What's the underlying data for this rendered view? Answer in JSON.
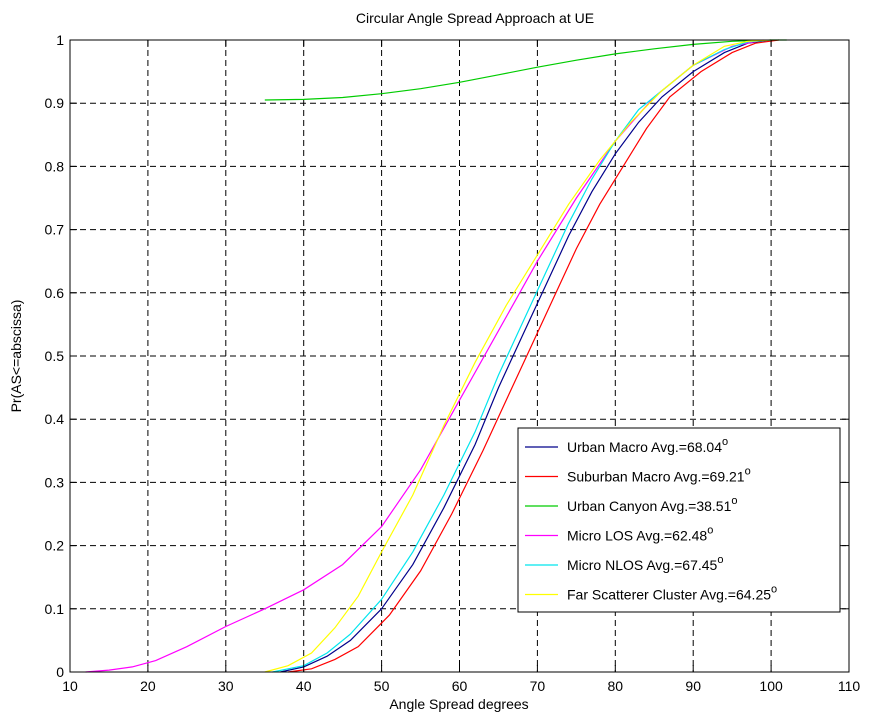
{
  "chart_data": {
    "type": "line",
    "title": "Circular Angle Spread Approach at UE",
    "xlabel": "Angle Spread degrees",
    "ylabel": "Pr(AS<=abscissa)",
    "xlim": [
      10,
      110
    ],
    "ylim": [
      0,
      1
    ],
    "xticks": [
      "10",
      "20",
      "30",
      "40",
      "50",
      "60",
      "70",
      "80",
      "90",
      "100",
      "110"
    ],
    "yticks": [
      "0",
      "0.1",
      "0.2",
      "0.3",
      "0.4",
      "0.5",
      "0.6",
      "0.7",
      "0.8",
      "0.9",
      "1"
    ],
    "grid": true,
    "legend_position": "bottom-right",
    "series": [
      {
        "name": "Urban Macro Avg.=68.04",
        "superscript": "o",
        "color": "#00008b",
        "x": [
          37,
          40,
          43,
          46,
          50,
          54,
          58,
          62,
          65,
          68,
          71,
          74,
          77,
          80,
          83,
          86,
          90,
          94,
          97,
          100
        ],
        "y": [
          0,
          0.008,
          0.025,
          0.05,
          0.1,
          0.17,
          0.26,
          0.36,
          0.45,
          0.53,
          0.61,
          0.69,
          0.76,
          0.82,
          0.87,
          0.91,
          0.95,
          0.98,
          0.995,
          1.0
        ]
      },
      {
        "name": "Suburban Macro Avg.=69.21",
        "superscript": "o",
        "color": "#ff0000",
        "x": [
          38,
          41,
          44,
          47,
          51,
          55,
          59,
          63,
          66,
          69,
          72,
          75,
          78,
          81,
          84,
          87,
          91,
          95,
          98,
          101
        ],
        "y": [
          0,
          0.005,
          0.02,
          0.04,
          0.09,
          0.16,
          0.25,
          0.35,
          0.43,
          0.51,
          0.59,
          0.67,
          0.74,
          0.8,
          0.86,
          0.91,
          0.95,
          0.98,
          0.995,
          1.0
        ]
      },
      {
        "name": "Urban Canyon Avg.=38.51",
        "superscript": "o",
        "color": "#00cc00",
        "x": [
          35,
          40,
          45,
          50,
          55,
          60,
          65,
          70,
          75,
          80,
          85,
          90,
          95,
          100,
          102
        ],
        "y": [
          0.905,
          0.906,
          0.909,
          0.915,
          0.923,
          0.933,
          0.945,
          0.957,
          0.968,
          0.978,
          0.986,
          0.993,
          0.998,
          1.0,
          1.0
        ]
      },
      {
        "name": "Micro LOS Avg.=62.48",
        "superscript": "o",
        "color": "#ff00ff",
        "x": [
          12,
          15,
          18,
          21,
          25,
          30,
          35,
          40,
          45,
          50,
          55,
          60,
          65,
          70,
          75,
          80,
          85,
          90,
          95,
          99
        ],
        "y": [
          0,
          0.003,
          0.008,
          0.018,
          0.04,
          0.072,
          0.1,
          0.13,
          0.17,
          0.23,
          0.32,
          0.43,
          0.54,
          0.65,
          0.75,
          0.84,
          0.91,
          0.96,
          0.99,
          1.0
        ]
      },
      {
        "name": "Micro NLOS Avg.=67.45",
        "superscript": "o",
        "color": "#00e5ee",
        "x": [
          36,
          40,
          43,
          46,
          50,
          54,
          58,
          62,
          65,
          68,
          71,
          74,
          77,
          80,
          83,
          86,
          90,
          94,
          97,
          100
        ],
        "y": [
          0,
          0.01,
          0.03,
          0.06,
          0.115,
          0.19,
          0.28,
          0.38,
          0.47,
          0.55,
          0.63,
          0.71,
          0.78,
          0.84,
          0.89,
          0.92,
          0.96,
          0.985,
          0.997,
          1.0
        ]
      },
      {
        "name": "Far Scatterer Cluster Avg.=64.25",
        "superscript": "o",
        "color": "#ffff00",
        "x": [
          35,
          38,
          41,
          44,
          47,
          50,
          54,
          58,
          62,
          66,
          70,
          74,
          78,
          82,
          86,
          90,
          94,
          97,
          100
        ],
        "y": [
          0,
          0.01,
          0.03,
          0.07,
          0.12,
          0.19,
          0.28,
          0.39,
          0.49,
          0.58,
          0.66,
          0.74,
          0.81,
          0.87,
          0.92,
          0.96,
          0.99,
          0.998,
          1.0
        ]
      }
    ]
  }
}
